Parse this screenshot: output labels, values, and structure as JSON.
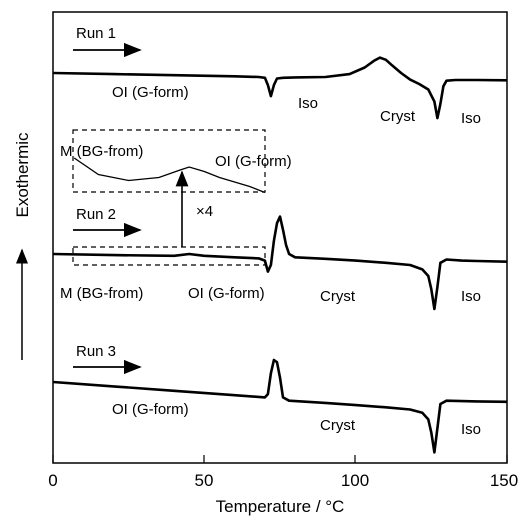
{
  "chart_data": {
    "type": "line",
    "title": "",
    "xlabel": "Temperature / °C",
    "ylabel": "Exothermic",
    "xlim": [
      0,
      150
    ],
    "xticks": [
      "0",
      "50",
      "100",
      "150"
    ],
    "grid": false,
    "yticks_shown": false,
    "line_color": "#000000",
    "series": [
      {
        "name": "Run 1",
        "x": [
          0,
          20,
          40,
          60,
          68,
          70,
          71,
          72,
          73,
          74,
          76,
          80,
          90,
          98,
          103,
          106,
          108,
          110,
          112,
          115,
          118,
          121,
          124,
          126,
          127,
          128,
          129,
          130,
          133,
          140,
          150
        ],
        "y": [
          0,
          -0.05,
          -0.1,
          -0.15,
          -0.18,
          -0.22,
          -0.55,
          -1.05,
          -0.55,
          -0.25,
          -0.22,
          -0.2,
          -0.18,
          -0.05,
          0.25,
          0.55,
          0.7,
          0.6,
          0.35,
          0.0,
          -0.3,
          -0.5,
          -0.75,
          -1.3,
          -2.05,
          -1.4,
          -0.6,
          -0.35,
          -0.32,
          -0.32,
          -0.33
        ]
      },
      {
        "name": "Run 2",
        "x": [
          0,
          20,
          40,
          45,
          50,
          60,
          68,
          70,
          71,
          72,
          73,
          74,
          75,
          76,
          77,
          78,
          80,
          90,
          100,
          110,
          118,
          122,
          124,
          125,
          126,
          127,
          128,
          130,
          135,
          140,
          150
        ],
        "y": [
          0,
          -0.05,
          -0.08,
          0.0,
          -0.08,
          -0.15,
          -0.2,
          -0.3,
          -0.8,
          -0.5,
          0.6,
          1.4,
          1.7,
          1.1,
          0.4,
          0.0,
          -0.15,
          -0.22,
          -0.3,
          -0.4,
          -0.5,
          -0.7,
          -1.0,
          -1.6,
          -2.5,
          -1.5,
          -0.4,
          -0.25,
          -0.3,
          -0.32,
          -0.35
        ]
      },
      {
        "name": "Run 3",
        "x": [
          0,
          20,
          40,
          60,
          70,
          71,
          72,
          73,
          74,
          75,
          76,
          78,
          90,
          100,
          110,
          118,
          122,
          124,
          125,
          126,
          127,
          128,
          130,
          135,
          140,
          150
        ],
        "y": [
          0,
          -0.2,
          -0.4,
          -0.6,
          -0.7,
          -0.55,
          0.4,
          1.0,
          0.9,
          0.2,
          -0.7,
          -0.85,
          -0.95,
          -1.05,
          -1.15,
          -1.25,
          -1.4,
          -1.7,
          -2.3,
          -3.2,
          -2.1,
          -1.0,
          -0.85,
          -0.87,
          -0.88,
          -0.9
        ]
      }
    ],
    "inset": {
      "magnification": "×4",
      "x": [
        7,
        15,
        25,
        35,
        42,
        45,
        50,
        55,
        60,
        65,
        70
      ],
      "y": [
        0.0,
        -1.1,
        -1.5,
        -1.3,
        -0.8,
        -0.6,
        -0.9,
        -1.3,
        -1.6,
        -1.9,
        -2.3
      ]
    },
    "annotations": {
      "run1": [
        "Run 1",
        "OI (G-form)",
        "Iso",
        "Cryst",
        "Iso"
      ],
      "run2": [
        "Run 2",
        "M (BG-from)",
        "OI (G-form)",
        "Cryst",
        "Iso"
      ],
      "run3": [
        "Run 3",
        "OI (G-form)",
        "Cryst",
        "Iso"
      ],
      "inset": [
        "M (BG-from)",
        "OI (G-form)"
      ]
    }
  }
}
